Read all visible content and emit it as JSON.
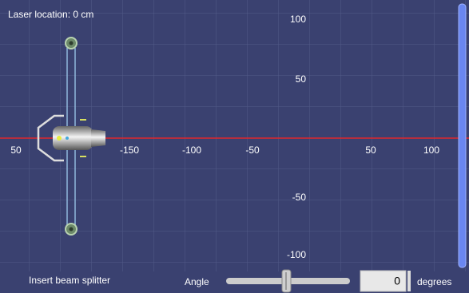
{
  "status": "Laser location: 0 cm",
  "axes": {
    "x_labels": [
      "50",
      "-150",
      "-100",
      "-50",
      "50",
      "100"
    ],
    "y_labels": [
      "100",
      "50",
      "-50",
      "-100"
    ]
  },
  "controls": {
    "splitter": "Insert beam splitter",
    "angle_label": "Angle",
    "angle_value": "0",
    "unit": "degrees"
  }
}
